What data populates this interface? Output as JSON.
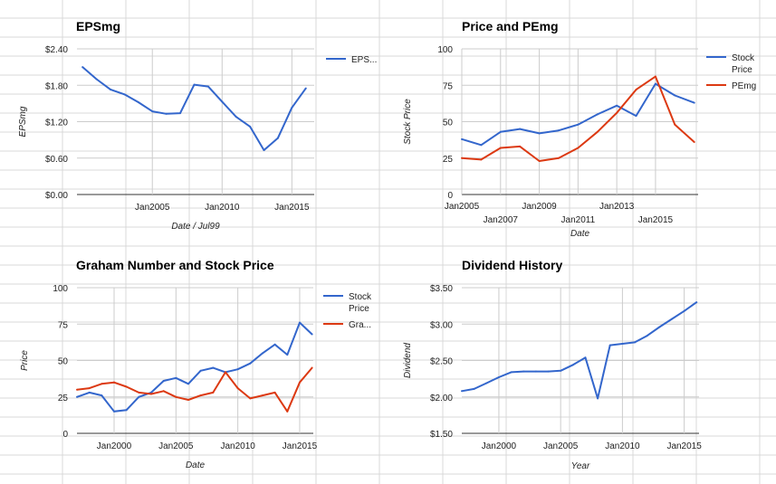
{
  "colors": {
    "blue": "#3366cc",
    "red": "#dc3912",
    "grid": "#cccccc",
    "cell_border": "#d9d9d9"
  },
  "chart_data": [
    {
      "id": "epsmg",
      "type": "line",
      "title": "EPSmg",
      "xlabel": "Date / Jul99",
      "ylabel": "EPSmg",
      "x_ticks": [
        {
          "x": 2005,
          "label": "Jan2005"
        },
        {
          "x": 2010,
          "label": "Jan2010"
        },
        {
          "x": 2015,
          "label": "Jan2015"
        }
      ],
      "y_ticks": [
        {
          "y": 0,
          "label": "$0.00"
        },
        {
          "y": 0.6,
          "label": "$0.60"
        },
        {
          "y": 1.2,
          "label": "$1.20"
        },
        {
          "y": 1.8,
          "label": "$1.80"
        },
        {
          "y": 2.4,
          "label": "$2.40"
        }
      ],
      "xlim": [
        1999.6,
        2016.6
      ],
      "ylim": [
        0,
        2.4
      ],
      "legend": "right",
      "series": [
        {
          "name": "EPS...",
          "color": "#3366cc",
          "x": [
            2000,
            2001,
            2002,
            2003,
            2004,
            2005,
            2006,
            2007,
            2008,
            2009,
            2010,
            2011,
            2012,
            2013,
            2014,
            2015,
            2016
          ],
          "y": [
            2.1,
            1.9,
            1.73,
            1.65,
            1.52,
            1.37,
            1.33,
            1.34,
            1.81,
            1.78,
            1.53,
            1.28,
            1.12,
            0.73,
            0.93,
            1.43,
            1.75
          ]
        }
      ]
    },
    {
      "id": "price-pemg",
      "type": "line",
      "title": "Price and PEmg",
      "xlabel": "Date",
      "ylabel": "Stock Price",
      "x_ticks": [
        {
          "x": 2005,
          "label": "Jan2005",
          "row": 0
        },
        {
          "x": 2007,
          "label": "Jan2007",
          "row": 1
        },
        {
          "x": 2009,
          "label": "Jan2009",
          "row": 0
        },
        {
          "x": 2011,
          "label": "Jan2011",
          "row": 1
        },
        {
          "x": 2013,
          "label": "Jan2013",
          "row": 0
        },
        {
          "x": 2015,
          "label": "Jan2015",
          "row": 1
        }
      ],
      "y_ticks": [
        {
          "y": 0,
          "label": "0"
        },
        {
          "y": 25,
          "label": "25"
        },
        {
          "y": 50,
          "label": "50"
        },
        {
          "y": 75,
          "label": "75"
        },
        {
          "y": 100,
          "label": "100"
        }
      ],
      "xlim": [
        2005,
        2017.2
      ],
      "ylim": [
        0,
        100
      ],
      "legend": "right",
      "series": [
        {
          "name": "Stock Price",
          "label_lines": [
            "Stock",
            "Price"
          ],
          "color": "#3366cc",
          "x": [
            2005,
            2006,
            2007,
            2008,
            2009,
            2010,
            2011,
            2012,
            2013,
            2014,
            2015,
            2016,
            2017
          ],
          "y": [
            38,
            34,
            43,
            45,
            42,
            44,
            48,
            55,
            61,
            54,
            76,
            68,
            63
          ]
        },
        {
          "name": "PEmg",
          "label_lines": [
            "PEmg"
          ],
          "color": "#dc3912",
          "x": [
            2005,
            2006,
            2007,
            2008,
            2009,
            2010,
            2011,
            2012,
            2013,
            2014,
            2015,
            2016,
            2017
          ],
          "y": [
            25,
            24,
            32,
            33,
            23,
            25,
            32,
            43,
            56,
            72,
            81,
            48,
            36
          ]
        }
      ]
    },
    {
      "id": "graham",
      "type": "line",
      "title": "Graham Number and Stock Price",
      "xlabel": "Date",
      "ylabel": "Price",
      "x_ticks": [
        {
          "x": 2000,
          "label": "Jan2000"
        },
        {
          "x": 2005,
          "label": "Jan2005"
        },
        {
          "x": 2010,
          "label": "Jan2010"
        },
        {
          "x": 2015,
          "label": "Jan2015"
        }
      ],
      "y_ticks": [
        {
          "y": 0,
          "label": "0"
        },
        {
          "y": 25,
          "label": "25"
        },
        {
          "y": 50,
          "label": "50"
        },
        {
          "y": 75,
          "label": "75"
        },
        {
          "y": 100,
          "label": "100"
        }
      ],
      "xlim": [
        1997,
        2016.1
      ],
      "ylim": [
        0,
        100
      ],
      "legend": "right",
      "series": [
        {
          "name": "Stock Price",
          "label_lines": [
            "Stock",
            "Price"
          ],
          "color": "#3366cc",
          "x": [
            1997,
            1998,
            1999,
            2000,
            2001,
            2002,
            2003,
            2004,
            2005,
            2006,
            2007,
            2008,
            2009,
            2010,
            2011,
            2012,
            2013,
            2014,
            2015,
            2016
          ],
          "y": [
            25,
            28,
            26,
            15,
            16,
            25,
            28,
            36,
            38,
            34,
            43,
            45,
            42,
            44,
            48,
            55,
            61,
            54,
            76,
            68
          ]
        },
        {
          "name": "Gra...",
          "label_lines": [
            "Gra..."
          ],
          "color": "#dc3912",
          "x": [
            1997,
            1998,
            1999,
            2000,
            2001,
            2002,
            2003,
            2004,
            2005,
            2006,
            2007,
            2008,
            2009,
            2010,
            2011,
            2012,
            2013,
            2014,
            2015,
            2016
          ],
          "y": [
            30,
            31,
            34,
            35,
            32,
            28,
            27,
            29,
            25,
            23,
            26,
            28,
            42,
            31,
            24,
            26,
            28,
            15,
            35,
            45
          ]
        }
      ]
    },
    {
      "id": "dividend",
      "type": "line",
      "title": "Dividend History",
      "xlabel": "Year",
      "ylabel": "Dividend",
      "x_ticks": [
        {
          "x": 2000,
          "label": "Jan2000"
        },
        {
          "x": 2005,
          "label": "Jan2005"
        },
        {
          "x": 2010,
          "label": "Jan2010"
        },
        {
          "x": 2015,
          "label": "Jan2015"
        }
      ],
      "y_ticks": [
        {
          "y": 1.5,
          "label": "$1.50"
        },
        {
          "y": 2.0,
          "label": "$2.00"
        },
        {
          "y": 2.5,
          "label": "$2.50"
        },
        {
          "y": 3.0,
          "label": "$3.00"
        },
        {
          "y": 3.5,
          "label": "$3.50"
        }
      ],
      "xlim": [
        1997,
        2016.2
      ],
      "ylim": [
        1.5,
        3.5
      ],
      "legend": "none",
      "series": [
        {
          "name": "",
          "color": "#3366cc",
          "x": [
            1997,
            1998,
            1999,
            2000,
            2001,
            2002,
            2003,
            2004,
            2005,
            2006,
            2007,
            2008,
            2009,
            2010,
            2011,
            2012,
            2013,
            2014,
            2015,
            2016
          ],
          "y": [
            2.08,
            2.11,
            2.19,
            2.27,
            2.34,
            2.35,
            2.35,
            2.35,
            2.36,
            2.44,
            2.54,
            1.98,
            2.71,
            2.73,
            2.75,
            2.84,
            2.96,
            3.07,
            3.18,
            3.3
          ]
        }
      ]
    }
  ]
}
